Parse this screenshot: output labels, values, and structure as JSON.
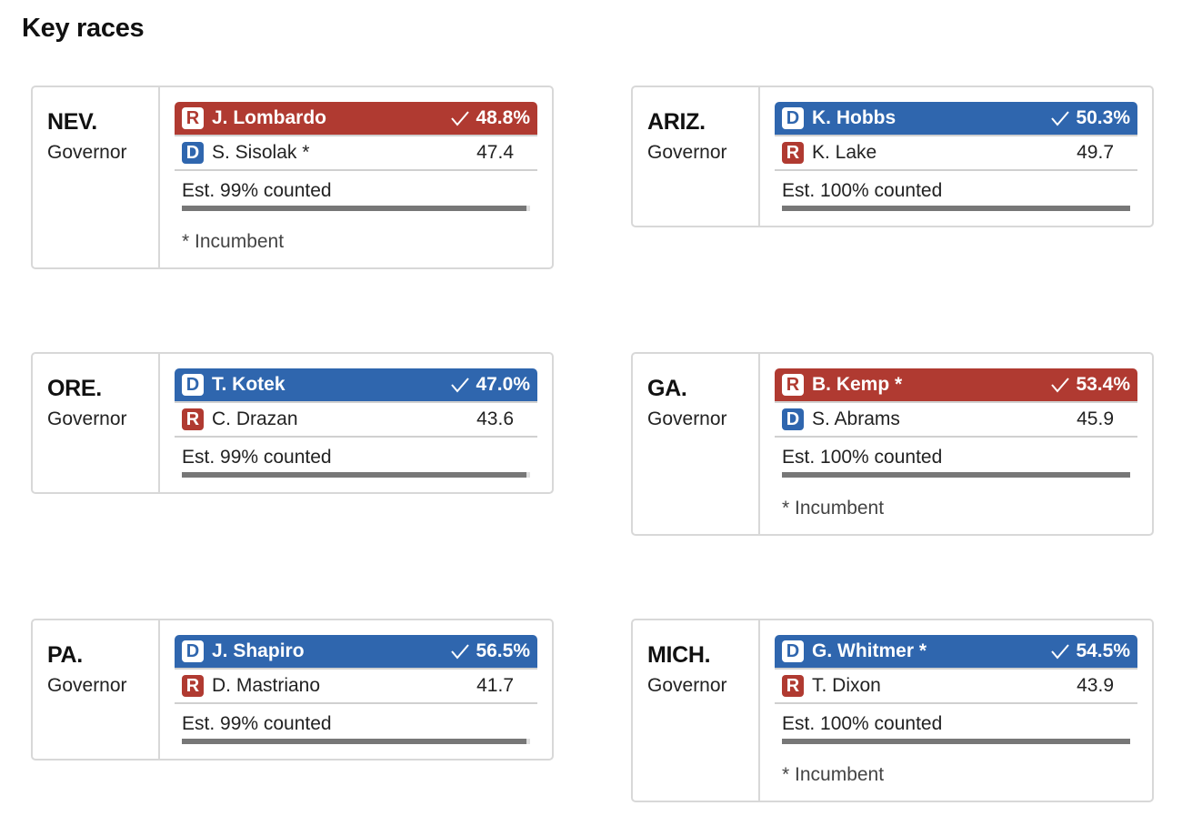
{
  "page_title": "Key races",
  "colors": {
    "dem": "#2f66ae",
    "rep": "#b03a31",
    "bar": "#777777"
  },
  "races": [
    {
      "state": "NEV.",
      "race": "Governor",
      "winner": {
        "party": "R",
        "name": "J. Lombardo",
        "pct": "48.8%"
      },
      "loser": {
        "party": "D",
        "name": "S. Sisolak *",
        "pct": "47.4"
      },
      "counted": "Est. 99% counted",
      "counted_fraction": 0.99,
      "note": "* Incumbent"
    },
    {
      "state": "ARIZ.",
      "race": "Governor",
      "winner": {
        "party": "D",
        "name": "K. Hobbs",
        "pct": "50.3%"
      },
      "loser": {
        "party": "R",
        "name": "K. Lake",
        "pct": "49.7"
      },
      "counted": "Est. 100% counted",
      "counted_fraction": 1.0,
      "note": ""
    },
    {
      "state": "ORE.",
      "race": "Governor",
      "winner": {
        "party": "D",
        "name": "T. Kotek",
        "pct": "47.0%"
      },
      "loser": {
        "party": "R",
        "name": "C. Drazan",
        "pct": "43.6"
      },
      "counted": "Est. 99% counted",
      "counted_fraction": 0.99,
      "note": ""
    },
    {
      "state": "GA.",
      "race": "Governor",
      "winner": {
        "party": "R",
        "name": "B. Kemp *",
        "pct": "53.4%"
      },
      "loser": {
        "party": "D",
        "name": "S. Abrams",
        "pct": "45.9"
      },
      "counted": "Est. 100% counted",
      "counted_fraction": 1.0,
      "note": "* Incumbent"
    },
    {
      "state": "PA.",
      "race": "Governor",
      "winner": {
        "party": "D",
        "name": "J. Shapiro",
        "pct": "56.5%"
      },
      "loser": {
        "party": "R",
        "name": "D. Mastriano",
        "pct": "41.7"
      },
      "counted": "Est. 99% counted",
      "counted_fraction": 0.99,
      "note": ""
    },
    {
      "state": "MICH.",
      "race": "Governor",
      "winner": {
        "party": "D",
        "name": "G. Whitmer *",
        "pct": "54.5%"
      },
      "loser": {
        "party": "R",
        "name": "T. Dixon",
        "pct": "43.9"
      },
      "counted": "Est. 100% counted",
      "counted_fraction": 1.0,
      "note": "* Incumbent"
    }
  ]
}
